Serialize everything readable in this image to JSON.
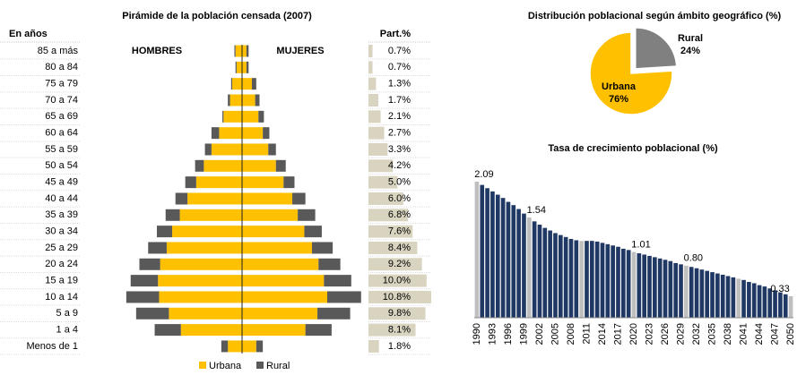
{
  "chart_data": [
    {
      "type": "pyramid",
      "title": "Pirámide de la población censada (2007)",
      "category_header": "En años",
      "left_label": "HOMBRES",
      "right_label": "MUJERES",
      "categories": [
        "85 a más",
        "80 a 84",
        "75 a 79",
        "70 a 74",
        "65 a 69",
        "60 a 64",
        "55 a 59",
        "50 a 54",
        "45 a 49",
        "40 a 44",
        "35 a 39",
        "30 a 34",
        "25 a 29",
        "20 a 24",
        "15 a 19",
        "10 a 14",
        "5 a 9",
        "1 a 4",
        "Menos de 1"
      ],
      "series": [
        {
          "name": "Urbana",
          "color": "#ffc000",
          "hombres": [
            0.3,
            0.25,
            0.45,
            0.55,
            0.85,
            1.05,
            1.4,
            1.75,
            2.1,
            2.5,
            2.85,
            3.2,
            3.45,
            3.75,
            3.85,
            3.8,
            3.35,
            2.8,
            0.65
          ],
          "mujeres": [
            0.2,
            0.2,
            0.45,
            0.6,
            0.75,
            0.95,
            1.2,
            1.55,
            1.9,
            2.3,
            2.55,
            2.85,
            3.2,
            3.5,
            3.75,
            3.9,
            3.45,
            2.9,
            0.65
          ]
        },
        {
          "name": "Rural",
          "color": "#595959",
          "hombres": [
            0.05,
            0.05,
            0.05,
            0.1,
            0.05,
            0.35,
            0.3,
            0.4,
            0.5,
            0.55,
            0.65,
            0.7,
            0.85,
            0.95,
            1.25,
            1.5,
            1.5,
            1.2,
            0.3
          ],
          "mujeres": [
            0.1,
            0.1,
            0.2,
            0.2,
            0.25,
            0.3,
            0.35,
            0.45,
            0.5,
            0.6,
            0.8,
            0.8,
            0.95,
            1.0,
            1.25,
            1.55,
            1.5,
            1.2,
            0.3
          ]
        }
      ],
      "xlim": [
        0,
        5.5
      ],
      "share": {
        "header": "Part.%",
        "color": "#d9d4c0",
        "xlim": [
          0,
          10.8
        ],
        "values": [
          0.7,
          0.7,
          1.3,
          1.7,
          2.1,
          2.7,
          3.3,
          4.2,
          5.0,
          6.0,
          6.8,
          7.6,
          8.4,
          9.2,
          10.0,
          10.8,
          9.8,
          8.1,
          1.8
        ],
        "value_labels": [
          "0.7%",
          "0.7%",
          "1.3%",
          "1.7%",
          "2.1%",
          "2.7%",
          "3.3%",
          "4.2%",
          "5.0%",
          "6.0%",
          "6.8%",
          "7.6%",
          "8.4%",
          "9.2%",
          "10.0%",
          "10.8%",
          "9.8%",
          "8.1%",
          "1.8%"
        ]
      }
    },
    {
      "type": "pie",
      "title": "Distribución poblacional según ámbito geográfico (%)",
      "categories": [
        "Rural",
        "Urbana"
      ],
      "values": [
        24,
        76
      ],
      "value_labels": [
        "24%",
        "76%"
      ],
      "colors": [
        "#808080",
        "#ffc000"
      ]
    },
    {
      "type": "bar",
      "title": "Tasa de crecimiento poblacional (%)",
      "categories": [
        "1990",
        null,
        null,
        "1993",
        null,
        null,
        "1996",
        null,
        null,
        "1999",
        null,
        null,
        "2002",
        null,
        null,
        "2005",
        null,
        null,
        "2008",
        null,
        null,
        "2011",
        null,
        null,
        "2014",
        null,
        null,
        "2017",
        null,
        null,
        "2020",
        null,
        null,
        "2023",
        null,
        null,
        "2026",
        null,
        null,
        "2029",
        null,
        null,
        "2032",
        null,
        null,
        "2035",
        null,
        null,
        "2038",
        null,
        null,
        "2041",
        null,
        null,
        "2044",
        null,
        null,
        "2047",
        null,
        null,
        "2050"
      ],
      "values": [
        2.09,
        2.04,
        1.99,
        1.94,
        1.89,
        1.84,
        1.78,
        1.73,
        1.67,
        1.6,
        1.54,
        1.48,
        1.43,
        1.38,
        1.34,
        1.3,
        1.27,
        1.24,
        1.21,
        1.19,
        1.18,
        1.18,
        1.18,
        1.17,
        1.15,
        1.13,
        1.11,
        1.09,
        1.06,
        1.04,
        1.01,
        0.99,
        0.97,
        0.95,
        0.93,
        0.91,
        0.89,
        0.87,
        0.84,
        0.82,
        0.8,
        0.78,
        0.76,
        0.74,
        0.72,
        0.7,
        0.68,
        0.66,
        0.64,
        0.62,
        0.6,
        0.58,
        0.55,
        0.53,
        0.5,
        0.48,
        0.45,
        0.42,
        0.39,
        0.36,
        0.33
      ],
      "value_labels": [
        "2.09",
        null,
        null,
        null,
        null,
        null,
        null,
        null,
        null,
        null,
        "1.54",
        null,
        null,
        null,
        null,
        null,
        null,
        null,
        null,
        null,
        null,
        null,
        null,
        null,
        null,
        null,
        null,
        null,
        null,
        null,
        "1.01",
        null,
        null,
        null,
        null,
        null,
        null,
        null,
        null,
        null,
        "0.80",
        null,
        null,
        null,
        null,
        null,
        null,
        null,
        null,
        null,
        null,
        null,
        null,
        null,
        null,
        null,
        null,
        null,
        null,
        null,
        "0.33"
      ],
      "colors": [
        "#bfbfbf",
        "#1f3864",
        "#1f3864",
        "#1f3864",
        "#1f3864",
        "#1f3864",
        "#1f3864",
        "#1f3864",
        "#1f3864",
        "#1f3864",
        "#bfbfbf",
        "#1f3864",
        "#1f3864",
        "#1f3864",
        "#1f3864",
        "#1f3864",
        "#1f3864",
        "#1f3864",
        "#1f3864",
        "#1f3864",
        "#bfbfbf",
        "#1f3864",
        "#1f3864",
        "#1f3864",
        "#1f3864",
        "#1f3864",
        "#1f3864",
        "#1f3864",
        "#1f3864",
        "#1f3864",
        "#bfbfbf",
        "#1f3864",
        "#1f3864",
        "#1f3864",
        "#1f3864",
        "#1f3864",
        "#1f3864",
        "#1f3864",
        "#1f3864",
        "#1f3864",
        "#bfbfbf",
        "#1f3864",
        "#1f3864",
        "#1f3864",
        "#1f3864",
        "#1f3864",
        "#1f3864",
        "#1f3864",
        "#1f3864",
        "#1f3864",
        "#bfbfbf",
        "#1f3864",
        "#1f3864",
        "#1f3864",
        "#1f3864",
        "#1f3864",
        "#1f3864",
        "#1f3864",
        "#1f3864",
        "#1f3864",
        "#bfbfbf"
      ],
      "ylim": [
        0,
        2.2
      ]
    }
  ]
}
